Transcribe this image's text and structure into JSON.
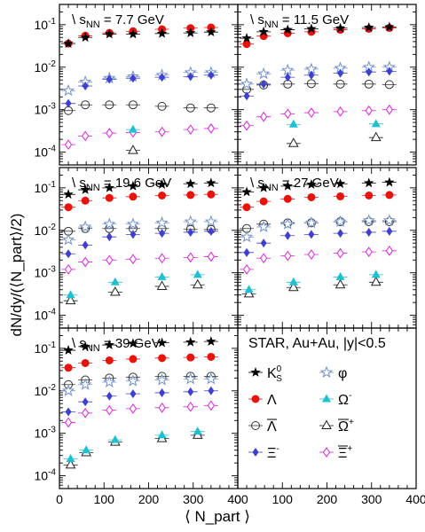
{
  "chart_data": {
    "type": "scatter",
    "title": "",
    "xlabel": "⟨ N_part ⟩",
    "ylabel": "dN/dy/(⟨N_part⟩/2)",
    "xlim": [
      0,
      400
    ],
    "ylim": [
      5e-05,
      0.3
    ],
    "yscale": "log",
    "x_ticks": [
      0,
      100,
      200,
      300,
      400
    ],
    "y_ticks": [
      "10^{-4}",
      "10^{-3}",
      "10^{-2}",
      "10^{-1}"
    ],
    "header": "STAR, Au+Au, |y|<0.5",
    "legend": [
      {
        "key": "k0s",
        "label": "K^0_S"
      },
      {
        "key": "phi",
        "label": "φ"
      },
      {
        "key": "lam",
        "label": "Λ"
      },
      {
        "key": "om",
        "label": "Ω^-"
      },
      {
        "key": "alam",
        "label": "Λ̄"
      },
      {
        "key": "aom",
        "label": "Ω̄^+"
      },
      {
        "key": "xi",
        "label": "Ξ^-"
      },
      {
        "key": "axi",
        "label": "Ξ̄^+"
      }
    ],
    "panels": [
      {
        "energy_prefix": "\\ s",
        "energy_sub": "NN",
        "energy_value": " = 7.7 GeV",
        "series": {
          "k0s": {
            "x": [
              20,
              58,
              112,
              165,
              230,
              294,
              340
            ],
            "y": [
              0.036,
              0.05,
              0.06,
              0.06,
              0.062,
              0.064,
              0.067
            ]
          },
          "lam": {
            "x": [
              20,
              58,
              112,
              165,
              230,
              294,
              340
            ],
            "y": [
              0.036,
              0.055,
              0.064,
              0.07,
              0.078,
              0.083,
              0.086
            ]
          },
          "alam": {
            "x": [
              20,
              58,
              112,
              165,
              230,
              294,
              340
            ],
            "y": [
              0.00095,
              0.0013,
              0.0013,
              0.0013,
              0.0012,
              0.0011,
              0.0011
            ]
          },
          "phi": {
            "x": [
              20,
              58,
              112,
              165,
              230,
              294,
              340
            ],
            "y": [
              0.0028,
              0.0045,
              0.0055,
              0.006,
              0.0065,
              0.0075,
              0.0075
            ]
          },
          "xi": {
            "x": [
              20,
              58,
              112,
              165,
              230,
              294,
              340
            ],
            "y": [
              0.0014,
              0.0036,
              0.0052,
              0.0055,
              0.0058,
              0.006,
              0.0065
            ]
          },
          "axi": {
            "x": [
              20,
              58,
              112,
              165,
              230,
              294,
              340
            ],
            "y": [
              0.00015,
              0.00024,
              0.00028,
              0.00029,
              0.0003,
              0.00034,
              0.00036
            ]
          },
          "om": {
            "x": [
              165
            ],
            "y": [
              0.00034
            ]
          },
          "aom": {
            "x": [
              165
            ],
            "y": [
              0.00011
            ]
          }
        }
      },
      {
        "energy_prefix": "\\ s",
        "energy_sub": "NN",
        "energy_value": " = 11.5 GeV",
        "series": {
          "k0s": {
            "x": [
              20,
              58,
              112,
              165,
              230,
              294,
              340
            ],
            "y": [
              0.048,
              0.068,
              0.076,
              0.08,
              0.083,
              0.086,
              0.088
            ]
          },
          "lam": {
            "x": [
              20,
              58,
              112,
              165,
              230,
              294,
              340
            ],
            "y": [
              0.035,
              0.054,
              0.063,
              0.068,
              0.076,
              0.08,
              0.084
            ]
          },
          "alam": {
            "x": [
              20,
              58,
              112,
              165,
              230,
              294,
              340
            ],
            "y": [
              0.003,
              0.0038,
              0.004,
              0.0041,
              0.004,
              0.004,
              0.0039
            ]
          },
          "phi": {
            "x": [
              20,
              58,
              112,
              165,
              230,
              294,
              340
            ],
            "y": [
              0.004,
              0.007,
              0.0085,
              0.009,
              0.0095,
              0.01,
              0.01
            ]
          },
          "xi": {
            "x": [
              20,
              58,
              112,
              165,
              230,
              294,
              340
            ],
            "y": [
              0.0021,
              0.004,
              0.0058,
              0.0065,
              0.0072,
              0.0077,
              0.008
            ]
          },
          "axi": {
            "x": [
              20,
              58,
              112,
              165,
              230,
              294,
              340
            ],
            "y": [
              0.00042,
              0.00068,
              0.0008,
              0.00085,
              0.0009,
              0.00095,
              0.001
            ]
          },
          "om": {
            "x": [
              125,
              310
            ],
            "y": [
              0.00045,
              0.00046
            ]
          },
          "aom": {
            "x": [
              125,
              310
            ],
            "y": [
              0.00016,
              0.00022
            ]
          }
        }
      },
      {
        "energy_prefix": "\\ s",
        "energy_sub": "NN",
        "energy_value": " = 19.6 GeV",
        "series": {
          "k0s": {
            "x": [
              20,
              58,
              112,
              165,
              230,
              294,
              340
            ],
            "y": [
              0.07,
              0.09,
              0.1,
              0.11,
              0.12,
              0.125,
              0.13
            ]
          },
          "lam": {
            "x": [
              20,
              58,
              112,
              165,
              230,
              294,
              340
            ],
            "y": [
              0.035,
              0.05,
              0.058,
              0.062,
              0.066,
              0.068,
              0.07
            ]
          },
          "alam": {
            "x": [
              20,
              58,
              112,
              165,
              230,
              294,
              340
            ],
            "y": [
              0.0095,
              0.011,
              0.011,
              0.011,
              0.011,
              0.0105,
              0.0105
            ]
          },
          "phi": {
            "x": [
              20,
              58,
              112,
              165,
              230,
              294,
              340
            ],
            "y": [
              0.006,
              0.012,
              0.014,
              0.014,
              0.015,
              0.016,
              0.016
            ]
          },
          "xi": {
            "x": [
              20,
              58,
              112,
              165,
              230,
              294,
              340
            ],
            "y": [
              0.0028,
              0.0045,
              0.007,
              0.008,
              0.0085,
              0.009,
              0.0095
            ]
          },
          "axi": {
            "x": [
              20,
              58,
              112,
              165,
              230,
              294,
              340
            ],
            "y": [
              0.0012,
              0.0018,
              0.002,
              0.0021,
              0.0022,
              0.0023,
              0.0024
            ]
          },
          "om": {
            "x": [
              25,
              125,
              230,
              310
            ],
            "y": [
              0.0003,
              0.0006,
              0.0008,
              0.0009
            ]
          },
          "aom": {
            "x": [
              25,
              125,
              230,
              310
            ],
            "y": [
              0.00022,
              0.00035,
              0.00048,
              0.00052
            ]
          }
        }
      },
      {
        "energy_prefix": "\\ s",
        "energy_sub": "NN",
        "energy_value": " = 27 GeV",
        "series": {
          "k0s": {
            "x": [
              20,
              58,
              112,
              165,
              230,
              294,
              340
            ],
            "y": [
              0.08,
              0.1,
              0.11,
              0.12,
              0.125,
              0.13,
              0.135
            ]
          },
          "lam": {
            "x": [
              20,
              58,
              112,
              165,
              230,
              294,
              340
            ],
            "y": [
              0.035,
              0.048,
              0.055,
              0.06,
              0.063,
              0.066,
              0.068
            ]
          },
          "alam": {
            "x": [
              20,
              58,
              112,
              165,
              230,
              294,
              340
            ],
            "y": [
              0.011,
              0.014,
              0.015,
              0.015,
              0.016,
              0.016,
              0.016
            ]
          },
          "phi": {
            "x": [
              20,
              58,
              112,
              165,
              230,
              294,
              340
            ],
            "y": [
              0.007,
              0.012,
              0.014,
              0.015,
              0.016,
              0.017,
              0.017
            ]
          },
          "xi": {
            "x": [
              20,
              58,
              112,
              165,
              230,
              294,
              340
            ],
            "y": [
              0.003,
              0.005,
              0.0075,
              0.008,
              0.0085,
              0.009,
              0.0095
            ]
          },
          "axi": {
            "x": [
              20,
              58,
              112,
              165,
              230,
              294,
              340
            ],
            "y": [
              0.0012,
              0.0022,
              0.0025,
              0.0027,
              0.0029,
              0.0031,
              0.0033
            ]
          },
          "om": {
            "x": [
              25,
              125,
              230,
              310
            ],
            "y": [
              0.0004,
              0.0006,
              0.0008,
              0.0009
            ]
          },
          "aom": {
            "x": [
              25,
              125,
              230,
              310
            ],
            "y": [
              0.00032,
              0.00045,
              0.00052,
              0.0006
            ]
          }
        }
      },
      {
        "energy_prefix": "\\ s",
        "energy_sub": "NN",
        "energy_value": " = 39 GeV",
        "series": {
          "k0s": {
            "x": [
              20,
              58,
              112,
              165,
              230,
              294,
              340
            ],
            "y": [
              0.09,
              0.11,
              0.12,
              0.13,
              0.135,
              0.14,
              0.145
            ]
          },
          "lam": {
            "x": [
              20,
              58,
              112,
              165,
              230,
              294,
              340
            ],
            "y": [
              0.035,
              0.045,
              0.052,
              0.056,
              0.059,
              0.061,
              0.063
            ]
          },
          "alam": {
            "x": [
              20,
              58,
              112,
              165,
              230,
              294,
              340
            ],
            "y": [
              0.014,
              0.018,
              0.02,
              0.021,
              0.022,
              0.022,
              0.022
            ]
          },
          "phi": {
            "x": [
              20,
              58,
              112,
              165,
              230,
              294,
              340
            ],
            "y": [
              0.01,
              0.014,
              0.016,
              0.017,
              0.018,
              0.019,
              0.019
            ]
          },
          "xi": {
            "x": [
              20,
              58,
              112,
              165,
              230,
              294,
              340
            ],
            "y": [
              0.0032,
              0.0055,
              0.0075,
              0.0085,
              0.009,
              0.0095,
              0.01
            ]
          },
          "axi": {
            "x": [
              20,
              58,
              112,
              165,
              230,
              294,
              340
            ],
            "y": [
              0.0018,
              0.003,
              0.0035,
              0.0038,
              0.004,
              0.0042,
              0.0045
            ]
          },
          "om": {
            "x": [
              25,
              60,
              125,
              230,
              310
            ],
            "y": [
              0.00025,
              0.0004,
              0.0007,
              0.0009,
              0.0011
            ]
          },
          "aom": {
            "x": [
              25,
              60,
              125,
              230,
              310
            ],
            "y": [
              0.00018,
              0.00035,
              0.00062,
              0.00075,
              0.0009
            ]
          }
        }
      }
    ]
  },
  "colors": {
    "k0s": "#000000",
    "lam": "#e8140c",
    "alam": "#333333",
    "phi": "#7090cc",
    "xi": "#4040d0",
    "axi": "#e020e0",
    "om": "#20c0d0",
    "aom": "#222222"
  }
}
